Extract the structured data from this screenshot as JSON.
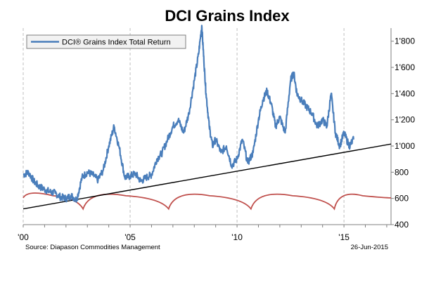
{
  "chart_data": {
    "type": "line",
    "title": "DCI Grains Index",
    "legend": {
      "position": "top-left",
      "entries": [
        "DCI® Grains Index Total Return"
      ]
    },
    "x_axis": {
      "range": [
        2000.0,
        2017.2
      ],
      "tick_values": [
        2000,
        2005,
        2010,
        2015
      ],
      "tick_labels": [
        "'00",
        "'05",
        "'10",
        "'15"
      ]
    },
    "y_axis": {
      "range": [
        400,
        1900
      ],
      "side": "right",
      "tick_values": [
        400,
        600,
        800,
        1000,
        1200,
        1400,
        1600,
        1800
      ],
      "tick_labels": [
        "400",
        "600",
        "800",
        "1'000",
        "1'200",
        "1'400",
        "1'600",
        "1'800"
      ]
    },
    "grid": {
      "vertical": true,
      "horizontal": false,
      "vertical_x": [
        2000,
        2005,
        2010,
        2015
      ]
    },
    "series": [
      {
        "name": "DCI® Grains Index Total Return",
        "color": "#4a7ebb",
        "x": [
          2000.0,
          2000.25,
          2000.5,
          2000.75,
          2001.0,
          2001.25,
          2001.5,
          2001.75,
          2002.0,
          2002.25,
          2002.5,
          2002.75,
          2003.0,
          2003.25,
          2003.5,
          2003.75,
          2004.0,
          2004.25,
          2004.5,
          2004.75,
          2005.0,
          2005.25,
          2005.5,
          2005.75,
          2006.0,
          2006.25,
          2006.5,
          2006.75,
          2007.0,
          2007.25,
          2007.5,
          2007.75,
          2008.0,
          2008.2,
          2008.35,
          2008.45,
          2008.55,
          2008.7,
          2008.85,
          2009.0,
          2009.25,
          2009.5,
          2009.75,
          2010.0,
          2010.25,
          2010.5,
          2010.75,
          2011.0,
          2011.2,
          2011.4,
          2011.6,
          2011.8,
          2012.0,
          2012.25,
          2012.5,
          2012.65,
          2012.8,
          2013.0,
          2013.25,
          2013.5,
          2013.75,
          2014.0,
          2014.2,
          2014.4,
          2014.6,
          2014.8,
          2015.0,
          2015.25,
          2015.45
        ],
        "y": [
          780,
          800,
          730,
          690,
          670,
          650,
          640,
          610,
          600,
          620,
          590,
          760,
          800,
          780,
          740,
          820,
          1000,
          1150,
          980,
          760,
          770,
          790,
          730,
          760,
          780,
          900,
          950,
          1050,
          1150,
          1200,
          1100,
          1250,
          1500,
          1700,
          1920,
          1650,
          1400,
          1150,
          1000,
          1050,
          950,
          1000,
          850,
          900,
          1050,
          870,
          950,
          1200,
          1350,
          1420,
          1320,
          1150,
          1220,
          1100,
          1500,
          1560,
          1400,
          1350,
          1300,
          1250,
          1150,
          1200,
          1150,
          1400,
          1100,
          1000,
          1100,
          1000,
          1050
        ]
      },
      {
        "name": "trend",
        "color": "#000000",
        "x": [
          2000.0,
          2017.2
        ],
        "y": [
          520,
          1015
        ]
      },
      {
        "name": "cycle",
        "color": "#c0504d",
        "cycles": [
          [
            2000.0,
            2002.8
          ],
          [
            2002.8,
            2006.8
          ],
          [
            2006.8,
            2010.65
          ],
          [
            2010.65,
            2014.55
          ],
          [
            2014.55,
            2017.2
          ]
        ],
        "base": 615,
        "trough": 520
      }
    ]
  },
  "footer": {
    "source": "Source: Diapason Commodities Management",
    "date": "26-Jun-2015"
  }
}
